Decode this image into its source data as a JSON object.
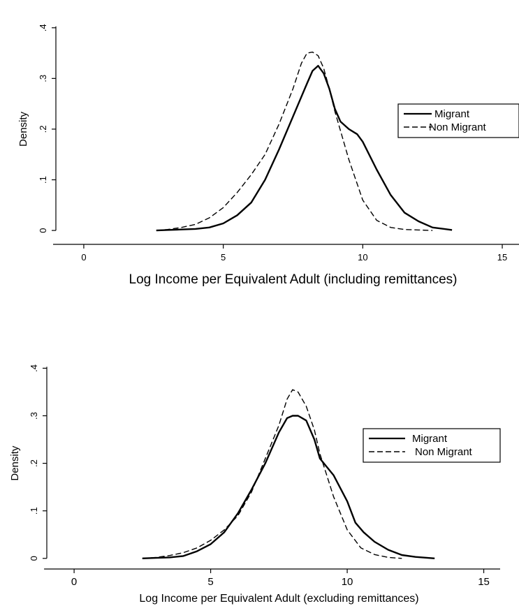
{
  "chart_data": [
    {
      "type": "line",
      "xlabel": "Log Income per Equivalent Adult (including remittances)",
      "ylabel": "Density",
      "xlim": [
        -1,
        15.6
      ],
      "ylim": [
        -0.015,
        0.43
      ],
      "xticks": [
        0,
        5,
        10,
        15
      ],
      "xtick_labels": [
        "0",
        "5",
        "10",
        "15"
      ],
      "yticks": [
        0,
        0.1,
        0.2,
        0.3,
        0.4
      ],
      "ytick_labels": [
        "0",
        ".1",
        ".2",
        ".3",
        ".4"
      ],
      "grid": false,
      "legend_position": "right",
      "series": [
        {
          "name": "Migrant",
          "style": "solid",
          "x": [
            2.6,
            3.0,
            3.5,
            4.0,
            4.5,
            5.0,
            5.5,
            6.0,
            6.5,
            7.0,
            7.5,
            8.0,
            8.2,
            8.4,
            8.6,
            8.8,
            9.0,
            9.2,
            9.5,
            9.8,
            10.0,
            10.5,
            11.0,
            11.5,
            12.0,
            12.5,
            13.2
          ],
          "y": [
            0.0,
            0.001,
            0.002,
            0.003,
            0.006,
            0.014,
            0.03,
            0.055,
            0.1,
            0.16,
            0.225,
            0.29,
            0.315,
            0.325,
            0.31,
            0.28,
            0.24,
            0.215,
            0.2,
            0.19,
            0.175,
            0.12,
            0.07,
            0.035,
            0.018,
            0.006,
            0.001
          ]
        },
        {
          "name": "Non Migrant",
          "style": "dashed",
          "x": [
            2.6,
            3.0,
            3.5,
            4.0,
            4.5,
            5.0,
            5.5,
            6.0,
            6.5,
            7.0,
            7.5,
            7.8,
            8.0,
            8.2,
            8.4,
            8.6,
            8.8,
            9.0,
            9.5,
            10.0,
            10.5,
            11.0,
            11.5,
            12.0,
            12.5
          ],
          "y": [
            0.0,
            0.002,
            0.006,
            0.012,
            0.025,
            0.045,
            0.075,
            0.11,
            0.15,
            0.21,
            0.28,
            0.33,
            0.35,
            0.352,
            0.345,
            0.32,
            0.28,
            0.235,
            0.14,
            0.06,
            0.02,
            0.006,
            0.002,
            0.001,
            0.0
          ]
        }
      ]
    },
    {
      "type": "line",
      "xlabel": "Log Income per Equivalent Adult (excluding remittances)",
      "ylabel": "Density",
      "xlim": [
        -1,
        15.6
      ],
      "ylim": [
        -0.015,
        0.43
      ],
      "xticks": [
        0,
        5,
        10,
        15
      ],
      "xtick_labels": [
        "0",
        "5",
        "10",
        "15"
      ],
      "yticks": [
        0,
        0.1,
        0.2,
        0.3,
        0.4
      ],
      "ytick_labels": [
        "0",
        ".1",
        ".2",
        ".3",
        ".4"
      ],
      "grid": false,
      "legend_position": "right",
      "series": [
        {
          "name": "Migrant",
          "style": "solid",
          "x": [
            2.5,
            3.0,
            3.5,
            4.0,
            4.5,
            5.0,
            5.5,
            6.0,
            6.5,
            7.0,
            7.5,
            7.8,
            8.0,
            8.2,
            8.5,
            8.8,
            9.0,
            9.5,
            10.0,
            10.3,
            10.6,
            11.0,
            11.5,
            12.0,
            12.5,
            13.2
          ],
          "y": [
            0.0,
            0.001,
            0.002,
            0.005,
            0.015,
            0.03,
            0.055,
            0.095,
            0.145,
            0.2,
            0.265,
            0.295,
            0.3,
            0.3,
            0.29,
            0.25,
            0.21,
            0.175,
            0.12,
            0.075,
            0.055,
            0.035,
            0.018,
            0.007,
            0.003,
            0.0
          ]
        },
        {
          "name": "Non Migrant",
          "style": "dashed",
          "x": [
            2.5,
            3.0,
            3.5,
            4.0,
            4.5,
            5.0,
            5.5,
            6.0,
            6.5,
            7.0,
            7.5,
            7.8,
            8.0,
            8.2,
            8.5,
            8.8,
            9.0,
            9.5,
            10.0,
            10.5,
            11.0,
            11.5,
            12.0
          ],
          "y": [
            0.0,
            0.002,
            0.006,
            0.012,
            0.022,
            0.038,
            0.06,
            0.09,
            0.14,
            0.21,
            0.28,
            0.335,
            0.355,
            0.35,
            0.32,
            0.27,
            0.22,
            0.13,
            0.06,
            0.022,
            0.008,
            0.002,
            0.0
          ]
        }
      ]
    }
  ]
}
